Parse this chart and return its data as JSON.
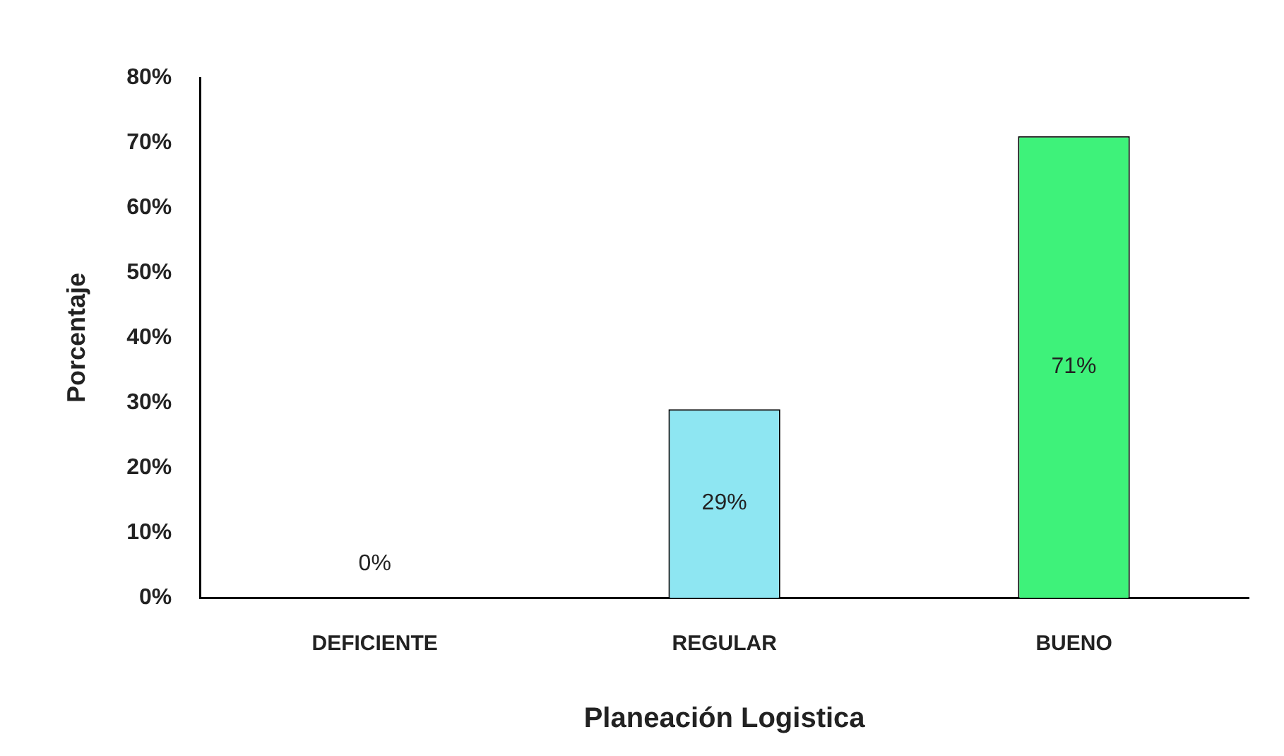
{
  "chart_data": {
    "type": "bar",
    "xlabel": "Planeación Logistica",
    "ylabel": "Porcentaje",
    "categories": [
      "DEFICIENTE",
      "REGULAR",
      "BUENO"
    ],
    "values": [
      0,
      29,
      71
    ],
    "colors": [
      "#9bbfe6",
      "#8ee6f2",
      "#3ef27a"
    ],
    "value_labels": [
      "0%",
      "29%",
      "71%"
    ],
    "ylim": [
      0,
      80
    ],
    "yticks": [
      {
        "value": 0,
        "label": "0%"
      },
      {
        "value": 10,
        "label": "10%"
      },
      {
        "value": 20,
        "label": "20%"
      },
      {
        "value": 30,
        "label": "30%"
      },
      {
        "value": 40,
        "label": "40%"
      },
      {
        "value": 50,
        "label": "50%"
      },
      {
        "value": 60,
        "label": "60%"
      },
      {
        "value": 70,
        "label": "70%"
      },
      {
        "value": 80,
        "label": "80%"
      }
    ],
    "grid": false,
    "legend": false
  }
}
